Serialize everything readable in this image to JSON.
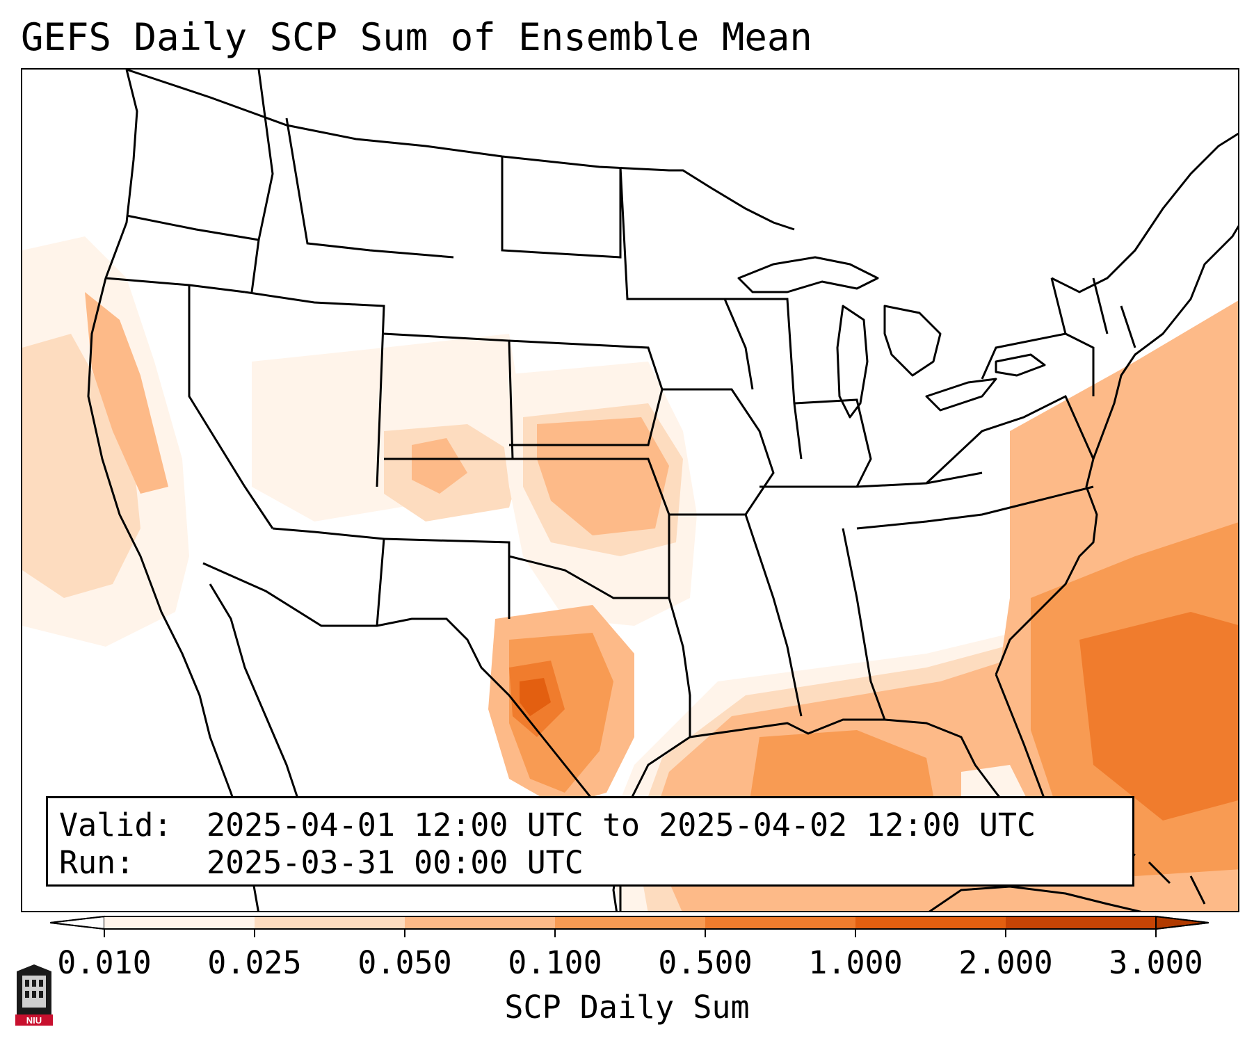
{
  "title": "GEFS Daily SCP Sum of Ensemble Mean",
  "info": {
    "valid_key": "Valid:",
    "valid_value": "2025-04-01 12:00 UTC to 2025-04-02 12:00 UTC",
    "run_key": "Run:",
    "run_value": "2025-03-31 00:00 UTC"
  },
  "colorbar": {
    "label": "SCP Daily Sum",
    "ticks": [
      "0.010",
      "0.025",
      "0.050",
      "0.100",
      "0.500",
      "1.000",
      "2.000",
      "3.000"
    ],
    "colors": [
      "#fff4ea",
      "#fddcbf",
      "#fdba88",
      "#f89b53",
      "#f07c2d",
      "#e35f10",
      "#c74405"
    ],
    "extend": "both"
  },
  "logo": {
    "text": "NIU",
    "icon": "university-building-icon"
  },
  "colors": {
    "bin1": "#fff4ea",
    "bin2": "#fddcbf",
    "bin3": "#fdba88",
    "bin4": "#f89b53",
    "bin5": "#f07c2d",
    "bin6": "#e35f10",
    "bin7": "#c74405"
  }
}
